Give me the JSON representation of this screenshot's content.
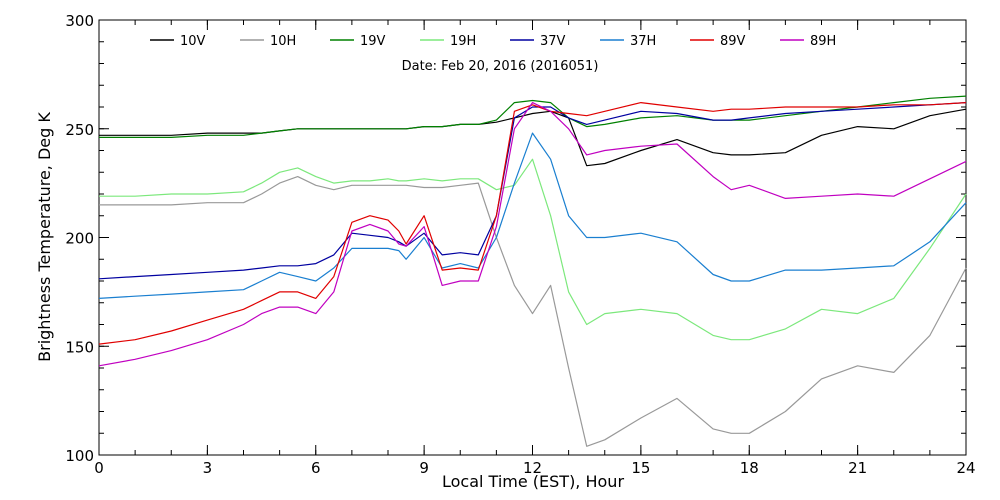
{
  "chart_data": {
    "type": "line",
    "title": "",
    "xlabel": "Local Time (EST), Hour",
    "ylabel": "Brightness Temperature, Deg K",
    "annotation": "Date: Feb 20, 2016 (2016051)",
    "xlim": [
      0,
      24
    ],
    "ylim": [
      100,
      300
    ],
    "x_ticks": [
      0,
      3,
      6,
      9,
      12,
      15,
      18,
      21,
      24
    ],
    "x_tick_labels": [
      "0",
      "3",
      "6",
      "9",
      "12",
      "15",
      "18",
      "21",
      "24"
    ],
    "x_minor_step": 1,
    "y_ticks": [
      100,
      150,
      200,
      250,
      300
    ],
    "y_tick_labels": [
      "100",
      "150",
      "200",
      "250",
      "300"
    ],
    "y_minor_step": 10,
    "grid": false,
    "legend_position": "top",
    "x": [
      0,
      1,
      2,
      3,
      4,
      4.5,
      5,
      5.5,
      6,
      6.5,
      7,
      7.5,
      8,
      8.3,
      8.5,
      9,
      9.5,
      10,
      10.5,
      11,
      11.5,
      12,
      12.5,
      13,
      13.5,
      14,
      15,
      16,
      17,
      17.5,
      18,
      19,
      20,
      21,
      22,
      23,
      24
    ],
    "series": [
      {
        "name": "10V",
        "color": "#000000",
        "values": [
          247,
          247,
          247,
          248,
          248,
          248,
          249,
          250,
          250,
          250,
          250,
          250,
          250,
          250,
          250,
          251,
          251,
          252,
          252,
          253,
          255,
          257,
          258,
          255,
          233,
          234,
          240,
          245,
          239,
          238,
          238,
          239,
          247,
          251,
          250,
          256,
          259
        ]
      },
      {
        "name": "10H",
        "color": "#999999",
        "values": [
          215,
          215,
          215,
          216,
          216,
          220,
          225,
          228,
          224,
          222,
          224,
          224,
          224,
          224,
          224,
          223,
          223,
          224,
          225,
          200,
          178,
          165,
          178,
          140,
          104,
          107,
          117,
          126,
          112,
          110,
          110,
          120,
          135,
          141,
          138,
          155,
          186
        ]
      },
      {
        "name": "19V",
        "color": "#008000",
        "values": [
          246,
          246,
          246,
          247,
          247,
          248,
          249,
          250,
          250,
          250,
          250,
          250,
          250,
          250,
          250,
          251,
          251,
          252,
          252,
          254,
          262,
          263,
          262,
          255,
          251,
          252,
          255,
          256,
          254,
          254,
          254,
          256,
          258,
          260,
          262,
          264,
          265
        ]
      },
      {
        "name": "19H",
        "color": "#7ce87c",
        "values": [
          219,
          219,
          220,
          220,
          221,
          225,
          230,
          232,
          228,
          225,
          226,
          226,
          227,
          226,
          226,
          227,
          226,
          227,
          227,
          222,
          224,
          236,
          210,
          175,
          160,
          165,
          167,
          165,
          155,
          153,
          153,
          158,
          167,
          165,
          172,
          195,
          220
        ]
      },
      {
        "name": "37V",
        "color": "#0000a0",
        "values": [
          181,
          182,
          183,
          184,
          185,
          186,
          187,
          187,
          188,
          192,
          202,
          201,
          200,
          198,
          196,
          202,
          192,
          193,
          192,
          210,
          255,
          260,
          260,
          255,
          252,
          254,
          258,
          257,
          254,
          254,
          255,
          257,
          258,
          259,
          260,
          261,
          262
        ]
      },
      {
        "name": "37H",
        "color": "#1a7fd0",
        "values": [
          172,
          173,
          174,
          175,
          176,
          180,
          184,
          182,
          180,
          186,
          195,
          195,
          195,
          194,
          190,
          200,
          186,
          188,
          186,
          200,
          225,
          248,
          236,
          210,
          200,
          200,
          202,
          198,
          183,
          180,
          180,
          185,
          185,
          186,
          187,
          198,
          216
        ]
      },
      {
        "name": "89V",
        "color": "#e00000",
        "values": [
          151,
          153,
          157,
          162,
          167,
          171,
          175,
          175,
          172,
          182,
          207,
          210,
          208,
          203,
          197,
          210,
          185,
          186,
          185,
          210,
          258,
          261,
          258,
          257,
          256,
          258,
          262,
          260,
          258,
          259,
          259,
          260,
          260,
          260,
          261,
          261,
          262
        ]
      },
      {
        "name": "89H",
        "color": "#c000c0",
        "values": [
          141,
          144,
          148,
          153,
          160,
          165,
          168,
          168,
          165,
          175,
          203,
          206,
          203,
          197,
          196,
          205,
          178,
          180,
          180,
          205,
          250,
          262,
          258,
          250,
          238,
          240,
          242,
          243,
          228,
          222,
          224,
          218,
          219,
          220,
          219,
          227,
          235
        ]
      }
    ]
  }
}
